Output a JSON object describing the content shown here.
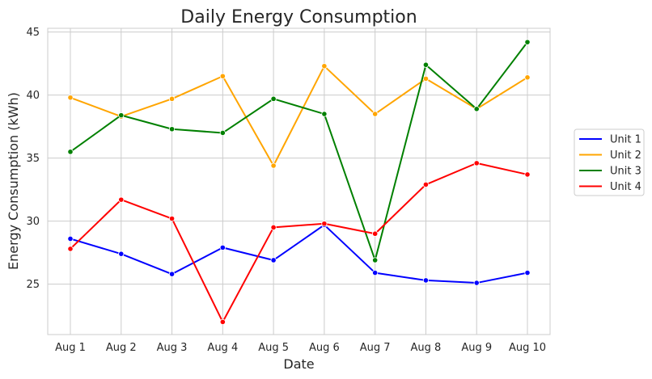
{
  "chart_data": {
    "type": "line",
    "title": "Daily Energy Consumption",
    "xlabel": "Date",
    "ylabel": "Energy Consumption (kWh)",
    "categories": [
      "Aug 1",
      "Aug 2",
      "Aug 3",
      "Aug 4",
      "Aug 5",
      "Aug 6",
      "Aug 7",
      "Aug 8",
      "Aug 9",
      "Aug 10"
    ],
    "ylim": [
      21,
      45.3
    ],
    "yticks": [
      25,
      30,
      35,
      40,
      45
    ],
    "grid": true,
    "legend_position": "right",
    "series": [
      {
        "name": "Unit 1",
        "color": "#0000ff",
        "values": [
          28.6,
          27.4,
          25.8,
          27.9,
          26.9,
          29.7,
          25.9,
          25.3,
          25.1,
          25.9
        ]
      },
      {
        "name": "Unit 2",
        "color": "#ffa500",
        "values": [
          39.8,
          38.3,
          39.7,
          41.5,
          34.4,
          42.3,
          38.5,
          41.3,
          38.9,
          41.4
        ]
      },
      {
        "name": "Unit 3",
        "color": "#008000",
        "values": [
          35.5,
          38.4,
          37.3,
          37.0,
          39.7,
          38.5,
          26.9,
          42.4,
          38.9,
          44.2
        ]
      },
      {
        "name": "Unit 4",
        "color": "#ff0000",
        "values": [
          27.8,
          31.7,
          30.2,
          22.0,
          29.5,
          29.8,
          29.0,
          32.9,
          34.6,
          33.7
        ]
      }
    ]
  }
}
